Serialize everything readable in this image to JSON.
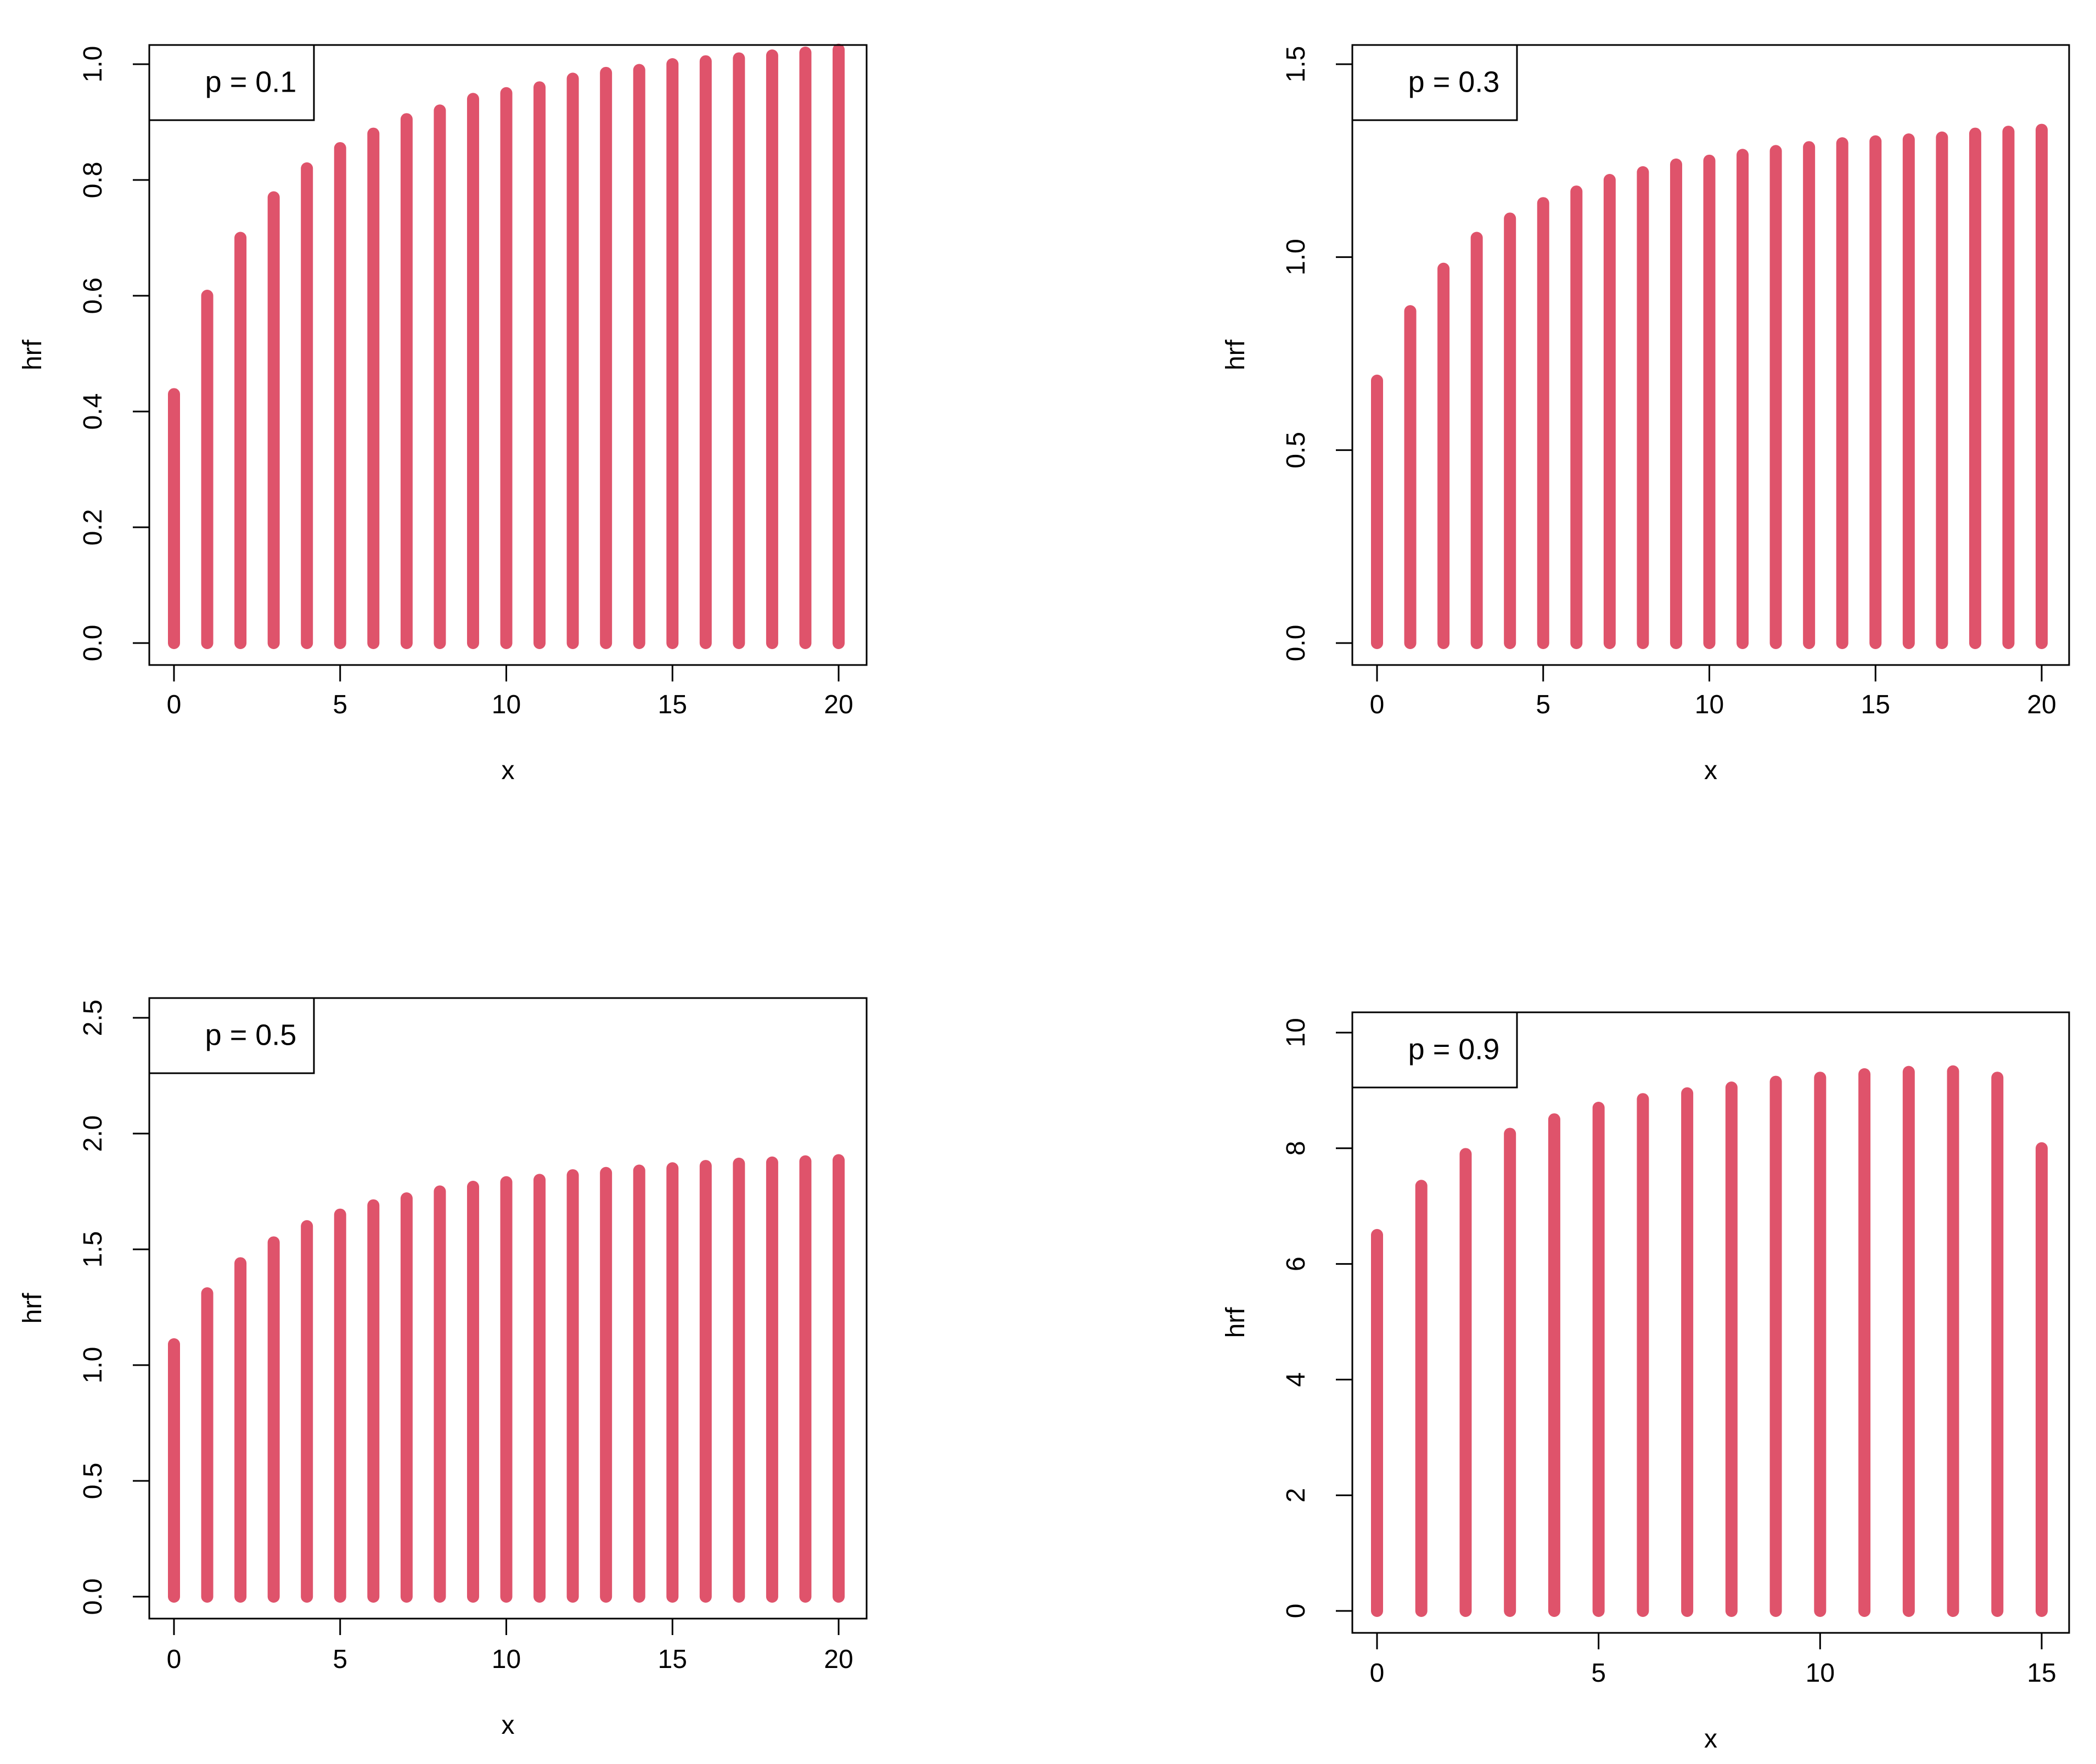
{
  "figure": {
    "panels": [
      {
        "legend": "p = 0.1",
        "xlabel": "x",
        "ylabel": "hrf",
        "xticks": [
          "0",
          "5",
          "10",
          "15",
          "20"
        ],
        "yticks": [
          "0.0",
          "0.2",
          "0.4",
          "0.6",
          "0.8",
          "1.0"
        ]
      },
      {
        "legend": "p = 0.3",
        "xlabel": "x",
        "ylabel": "hrf",
        "xticks": [
          "0",
          "5",
          "10",
          "15",
          "20"
        ],
        "yticks": [
          "0.0",
          "0.5",
          "1.0",
          "1.5"
        ]
      },
      {
        "legend": "p = 0.5",
        "xlabel": "x",
        "ylabel": "hrf",
        "xticks": [
          "0",
          "5",
          "10",
          "15",
          "20"
        ],
        "yticks": [
          "0.0",
          "0.5",
          "1.0",
          "1.5",
          "2.0",
          "2.5"
        ]
      },
      {
        "legend": "p = 0.9",
        "xlabel": "x",
        "ylabel": "hrf",
        "xticks": [
          "0",
          "5",
          "10",
          "15"
        ],
        "yticks": [
          "0",
          "2",
          "4",
          "6",
          "8",
          "10"
        ]
      }
    ]
  },
  "chart_data": [
    {
      "type": "bar",
      "legend": "p = 0.1",
      "legend_position": "top-left",
      "xlabel": "x",
      "ylabel": "hrf",
      "xlim": [
        0,
        20
      ],
      "ylim": [
        0,
        1.0
      ],
      "x": [
        0,
        1,
        2,
        3,
        4,
        5,
        6,
        7,
        8,
        9,
        10,
        11,
        12,
        13,
        14,
        15,
        16,
        17,
        18,
        19,
        20
      ],
      "values": [
        0.43,
        0.6,
        0.7,
        0.77,
        0.82,
        0.855,
        0.88,
        0.905,
        0.92,
        0.94,
        0.95,
        0.96,
        0.975,
        0.985,
        0.99,
        1.0,
        1.005,
        1.01,
        1.015,
        1.02,
        1.025
      ],
      "grid": false,
      "color": "#DF536B"
    },
    {
      "type": "bar",
      "legend": "p = 0.3",
      "legend_position": "top-left",
      "xlabel": "x",
      "ylabel": "hrf",
      "xlim": [
        0,
        20
      ],
      "ylim": [
        0,
        1.5
      ],
      "x": [
        0,
        1,
        2,
        3,
        4,
        5,
        6,
        7,
        8,
        9,
        10,
        11,
        12,
        13,
        14,
        15,
        16,
        17,
        18,
        19,
        20
      ],
      "values": [
        0.68,
        0.86,
        0.97,
        1.05,
        1.1,
        1.14,
        1.17,
        1.2,
        1.22,
        1.24,
        1.25,
        1.265,
        1.275,
        1.285,
        1.295,
        1.3,
        1.305,
        1.31,
        1.32,
        1.325,
        1.33
      ],
      "grid": false,
      "color": "#DF536B"
    },
    {
      "type": "bar",
      "legend": "p = 0.5",
      "legend_position": "top-left",
      "xlabel": "x",
      "ylabel": "hrf",
      "xlim": [
        0,
        20
      ],
      "ylim": [
        0,
        2.5
      ],
      "x": [
        0,
        1,
        2,
        3,
        4,
        5,
        6,
        7,
        8,
        9,
        10,
        11,
        12,
        13,
        14,
        15,
        16,
        17,
        18,
        19,
        20
      ],
      "values": [
        1.09,
        1.31,
        1.44,
        1.53,
        1.6,
        1.65,
        1.69,
        1.72,
        1.75,
        1.77,
        1.79,
        1.8,
        1.82,
        1.83,
        1.84,
        1.85,
        1.86,
        1.87,
        1.875,
        1.88,
        1.885
      ],
      "grid": false,
      "color": "#DF536B"
    },
    {
      "type": "bar",
      "legend": "p = 0.9",
      "legend_position": "top-left",
      "xlabel": "x",
      "ylabel": "hrf",
      "xlim": [
        0,
        15
      ],
      "ylim": [
        0,
        10
      ],
      "x": [
        0,
        1,
        2,
        3,
        4,
        5,
        6,
        7,
        8,
        9,
        10,
        11,
        12,
        13,
        14,
        15
      ],
      "values": [
        6.5,
        7.35,
        7.9,
        8.25,
        8.5,
        8.7,
        8.85,
        8.95,
        9.05,
        9.15,
        9.22,
        9.28,
        9.32,
        9.33,
        9.22,
        8.0
      ],
      "grid": false,
      "color": "#DF536B"
    }
  ]
}
